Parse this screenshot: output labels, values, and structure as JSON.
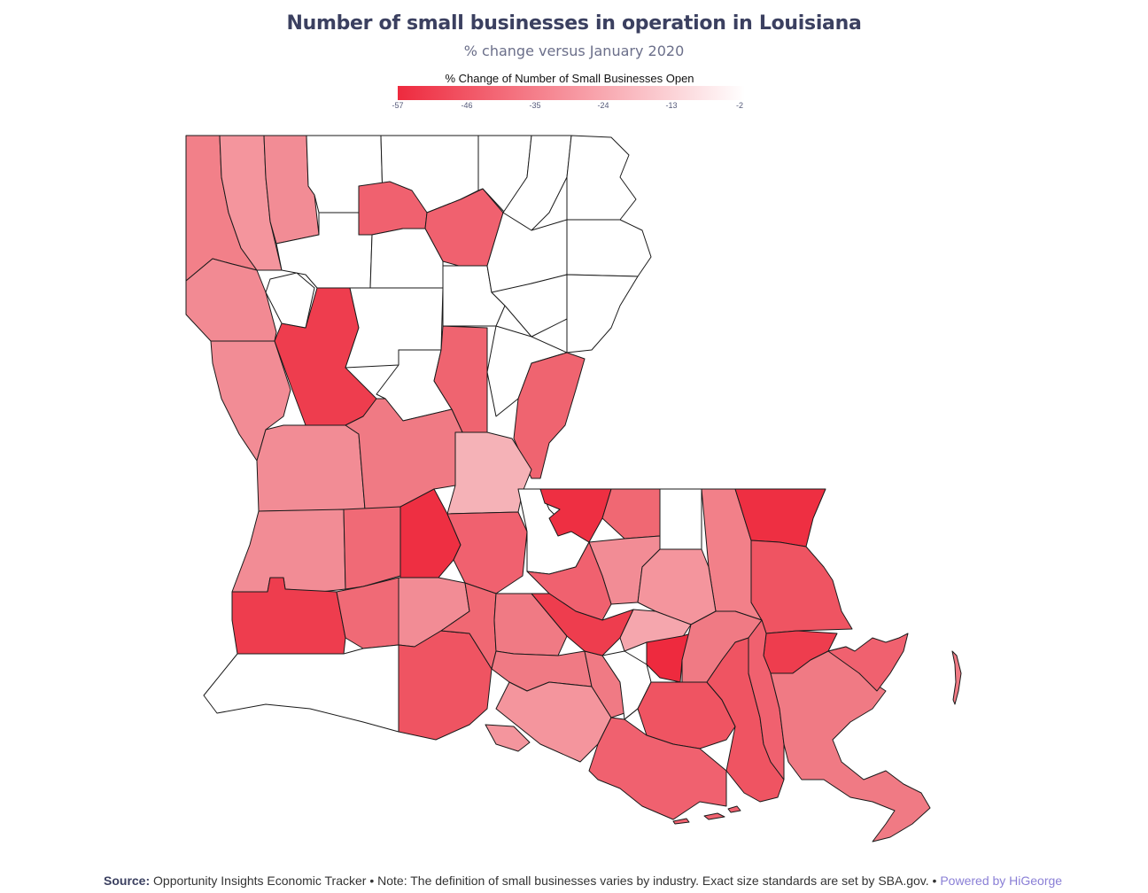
{
  "title": "Number of small businesses in operation in Louisiana",
  "subtitle": "% change versus January 2020",
  "legend": {
    "title": "% Change of Number of Small Businesses Open",
    "min": -57,
    "max": -2,
    "ticks": [
      "-57",
      "-46",
      "-35",
      "-24",
      "-13",
      "-2"
    ],
    "color_low": "#ee2a3e",
    "color_high": "#ffffff"
  },
  "map": {
    "region": "Louisiana parishes",
    "no_data_color": "#ffffff",
    "stroke_color": "#1a1a1a"
  },
  "footer": {
    "source_label": "Source:",
    "source_text": " Opportunity Insights Economic Tracker • Note: The definition of small businesses varies by industry. Exact size standards are set by SBA.gov. • ",
    "brand": "Powered by HiGeorge"
  }
}
